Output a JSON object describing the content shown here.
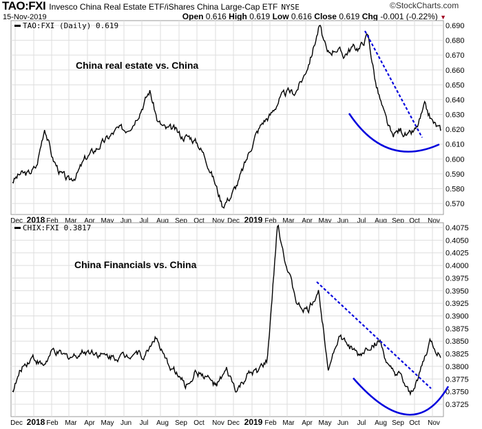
{
  "header": {
    "symbol": "TAO:FXI",
    "name": "Invesco China Real Estate ETF/iShares China Large-Cap ETF",
    "exchange": "NYSE",
    "brand": "©StockCharts.com",
    "date": "15-Nov-2019",
    "open_label": "Open",
    "open": "0.616",
    "high_label": "High",
    "high": "0.619",
    "low_label": "Low",
    "low": "0.616",
    "close_label": "Close",
    "close": "0.619",
    "chg_label": "Chg",
    "chg": "-0.001 (-0.22%)",
    "chg_color": "#a00020"
  },
  "chart_data": [
    {
      "type": "line",
      "legend": "TAO:FXI (Daily) 0.619",
      "annotation": "China real estate vs. China",
      "ylim": [
        0.565,
        0.693
      ],
      "yticks": [
        "0.690",
        "0.680",
        "0.670",
        "0.660",
        "0.650",
        "0.640",
        "0.630",
        "0.620",
        "0.610",
        "0.600",
        "0.590",
        "0.580",
        "0.570"
      ],
      "x_ticks": [
        "Dec",
        "2018",
        "Feb",
        "Mar",
        "Apr",
        "May",
        "Jun",
        "Jul",
        "Aug",
        "Sep",
        "Oct",
        "Nov",
        "Dec",
        "2019",
        "Feb",
        "Mar",
        "Apr",
        "May",
        "Jun",
        "Jul",
        "Aug",
        "Sep",
        "Oct",
        "Nov"
      ],
      "values": [
        0.585,
        0.59,
        0.59,
        0.595,
        0.622,
        0.6,
        0.59,
        0.585,
        0.59,
        0.6,
        0.605,
        0.61,
        0.615,
        0.62,
        0.62,
        0.625,
        0.635,
        0.646,
        0.625,
        0.62,
        0.62,
        0.615,
        0.615,
        0.61,
        0.6,
        0.585,
        0.569,
        0.575,
        0.585,
        0.6,
        0.615,
        0.625,
        0.63,
        0.64,
        0.645,
        0.645,
        0.655,
        0.67,
        0.69,
        0.67,
        0.675,
        0.67,
        0.675,
        0.675,
        0.684,
        0.65,
        0.63,
        0.615,
        0.62,
        0.615,
        0.62,
        0.635,
        0.625,
        0.619
      ]
    },
    {
      "type": "line",
      "legend": "CHIX:FXI 0.3817",
      "annotation": "China Financials vs. China",
      "ylim": [
        0.3708,
        0.4085
      ],
      "yticks": [
        "0.4075",
        "0.4050",
        "0.4025",
        "0.4000",
        "0.3975",
        "0.3950",
        "0.3925",
        "0.3900",
        "0.3875",
        "0.3850",
        "0.3825",
        "0.3800",
        "0.3775",
        "0.3750",
        "0.3725"
      ],
      "x_ticks": [
        "Dec",
        "2018",
        "Feb",
        "Mar",
        "Apr",
        "May",
        "Jun",
        "Jul",
        "Aug",
        "Sep",
        "Oct",
        "Nov",
        "Dec",
        "2019",
        "Feb",
        "Mar",
        "Apr",
        "May",
        "Jun",
        "Jul",
        "Aug",
        "Sep",
        "Oct",
        "Nov"
      ],
      "values": [
        0.375,
        0.38,
        0.382,
        0.38,
        0.383,
        0.382,
        0.382,
        0.383,
        0.383,
        0.382,
        0.382,
        0.382,
        0.383,
        0.382,
        0.386,
        0.381,
        0.379,
        0.376,
        0.379,
        0.378,
        0.376,
        0.379,
        0.375,
        0.378,
        0.379,
        0.381,
        0.408,
        0.399,
        0.392,
        0.391,
        0.395,
        0.38,
        0.386,
        0.384,
        0.382,
        0.384,
        0.385,
        0.379,
        0.378,
        0.374,
        0.379,
        0.385,
        0.3817
      ]
    }
  ],
  "colors": {
    "line": "#000000",
    "annotation": "#0000dd",
    "grid": "#dddddd"
  }
}
